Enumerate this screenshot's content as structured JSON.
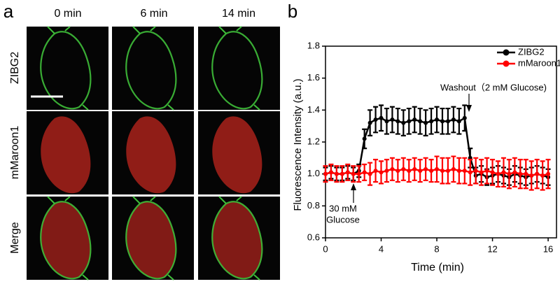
{
  "panel_a": {
    "label": "a",
    "columns": [
      "0 min",
      "6 min",
      "14 min"
    ],
    "rows": [
      "ZIBG2",
      "mMaroon1",
      "Merge"
    ]
  },
  "chart_data": {
    "type": "line",
    "panel_label": "b",
    "xlabel": "Time (min)",
    "ylabel": "Fluorescence Intensity (a.u.)",
    "annotations": [
      "Washout（2 mM Glucose)",
      "30 mM",
      "Glucose"
    ],
    "x": [
      0,
      0.4,
      0.8,
      1.2,
      1.6,
      2,
      2.4,
      2.8,
      3.2,
      3.6,
      4,
      4.4,
      4.8,
      5.2,
      5.6,
      6,
      6.4,
      6.8,
      7.2,
      7.6,
      8,
      8.4,
      8.8,
      9.2,
      9.6,
      10,
      10.4,
      10.8,
      11.2,
      11.6,
      12,
      12.4,
      12.8,
      13.2,
      13.6,
      14,
      14.4,
      14.8,
      15.2,
      15.6,
      16
    ],
    "series": [
      {
        "name": "ZIBG2",
        "color": "#000000",
        "values": [
          1.0,
          1.01,
          1.0,
          1.0,
          1.01,
          1.0,
          1.02,
          1.22,
          1.32,
          1.34,
          1.35,
          1.33,
          1.34,
          1.33,
          1.32,
          1.33,
          1.34,
          1.33,
          1.32,
          1.33,
          1.34,
          1.33,
          1.33,
          1.34,
          1.33,
          1.35,
          1.1,
          0.99,
          1.0,
          0.98,
          0.99,
          1.0,
          0.99,
          0.98,
          1.0,
          0.99,
          0.98,
          0.99,
          1.0,
          0.99,
          0.98
        ],
        "errors": [
          0.04,
          0.04,
          0.04,
          0.04,
          0.04,
          0.04,
          0.04,
          0.06,
          0.08,
          0.08,
          0.08,
          0.08,
          0.08,
          0.08,
          0.08,
          0.08,
          0.08,
          0.08,
          0.08,
          0.08,
          0.08,
          0.08,
          0.08,
          0.08,
          0.08,
          0.08,
          0.06,
          0.05,
          0.05,
          0.05,
          0.05,
          0.05,
          0.05,
          0.05,
          0.05,
          0.05,
          0.05,
          0.05,
          0.05,
          0.05,
          0.05
        ]
      },
      {
        "name": "mMaroon1",
        "color": "#ff0000",
        "values": [
          1.0,
          1.01,
          1.0,
          1.0,
          1.01,
          1.0,
          1.0,
          1.01,
          1.0,
          1.02,
          1.01,
          1.02,
          1.03,
          1.02,
          1.03,
          1.02,
          1.03,
          1.02,
          1.03,
          1.02,
          1.03,
          1.02,
          1.02,
          1.03,
          1.02,
          1.02,
          1.01,
          1.02,
          1.01,
          1.02,
          1.01,
          1.0,
          1.01,
          1.0,
          1.01,
          1.0,
          1.0,
          0.99,
          1.0,
          0.99,
          1.0
        ],
        "errors": [
          0.05,
          0.05,
          0.05,
          0.05,
          0.05,
          0.05,
          0.05,
          0.05,
          0.07,
          0.07,
          0.07,
          0.07,
          0.07,
          0.07,
          0.07,
          0.07,
          0.07,
          0.07,
          0.07,
          0.07,
          0.08,
          0.08,
          0.08,
          0.08,
          0.08,
          0.08,
          0.08,
          0.08,
          0.08,
          0.08,
          0.08,
          0.08,
          0.09,
          0.09,
          0.09,
          0.09,
          0.09,
          0.09,
          0.09,
          0.09,
          0.09
        ]
      }
    ],
    "xlim": [
      0,
      16.6
    ],
    "xticks": [
      0,
      4,
      8,
      12,
      16
    ],
    "ylim": [
      0.6,
      1.8
    ],
    "yticks": [
      0.6,
      0.8,
      {
        "value": 1,
        "label": "1.0"
      },
      1.2,
      1.4,
      1.6,
      1.8
    ],
    "grid": false,
    "legend": "upper right"
  }
}
